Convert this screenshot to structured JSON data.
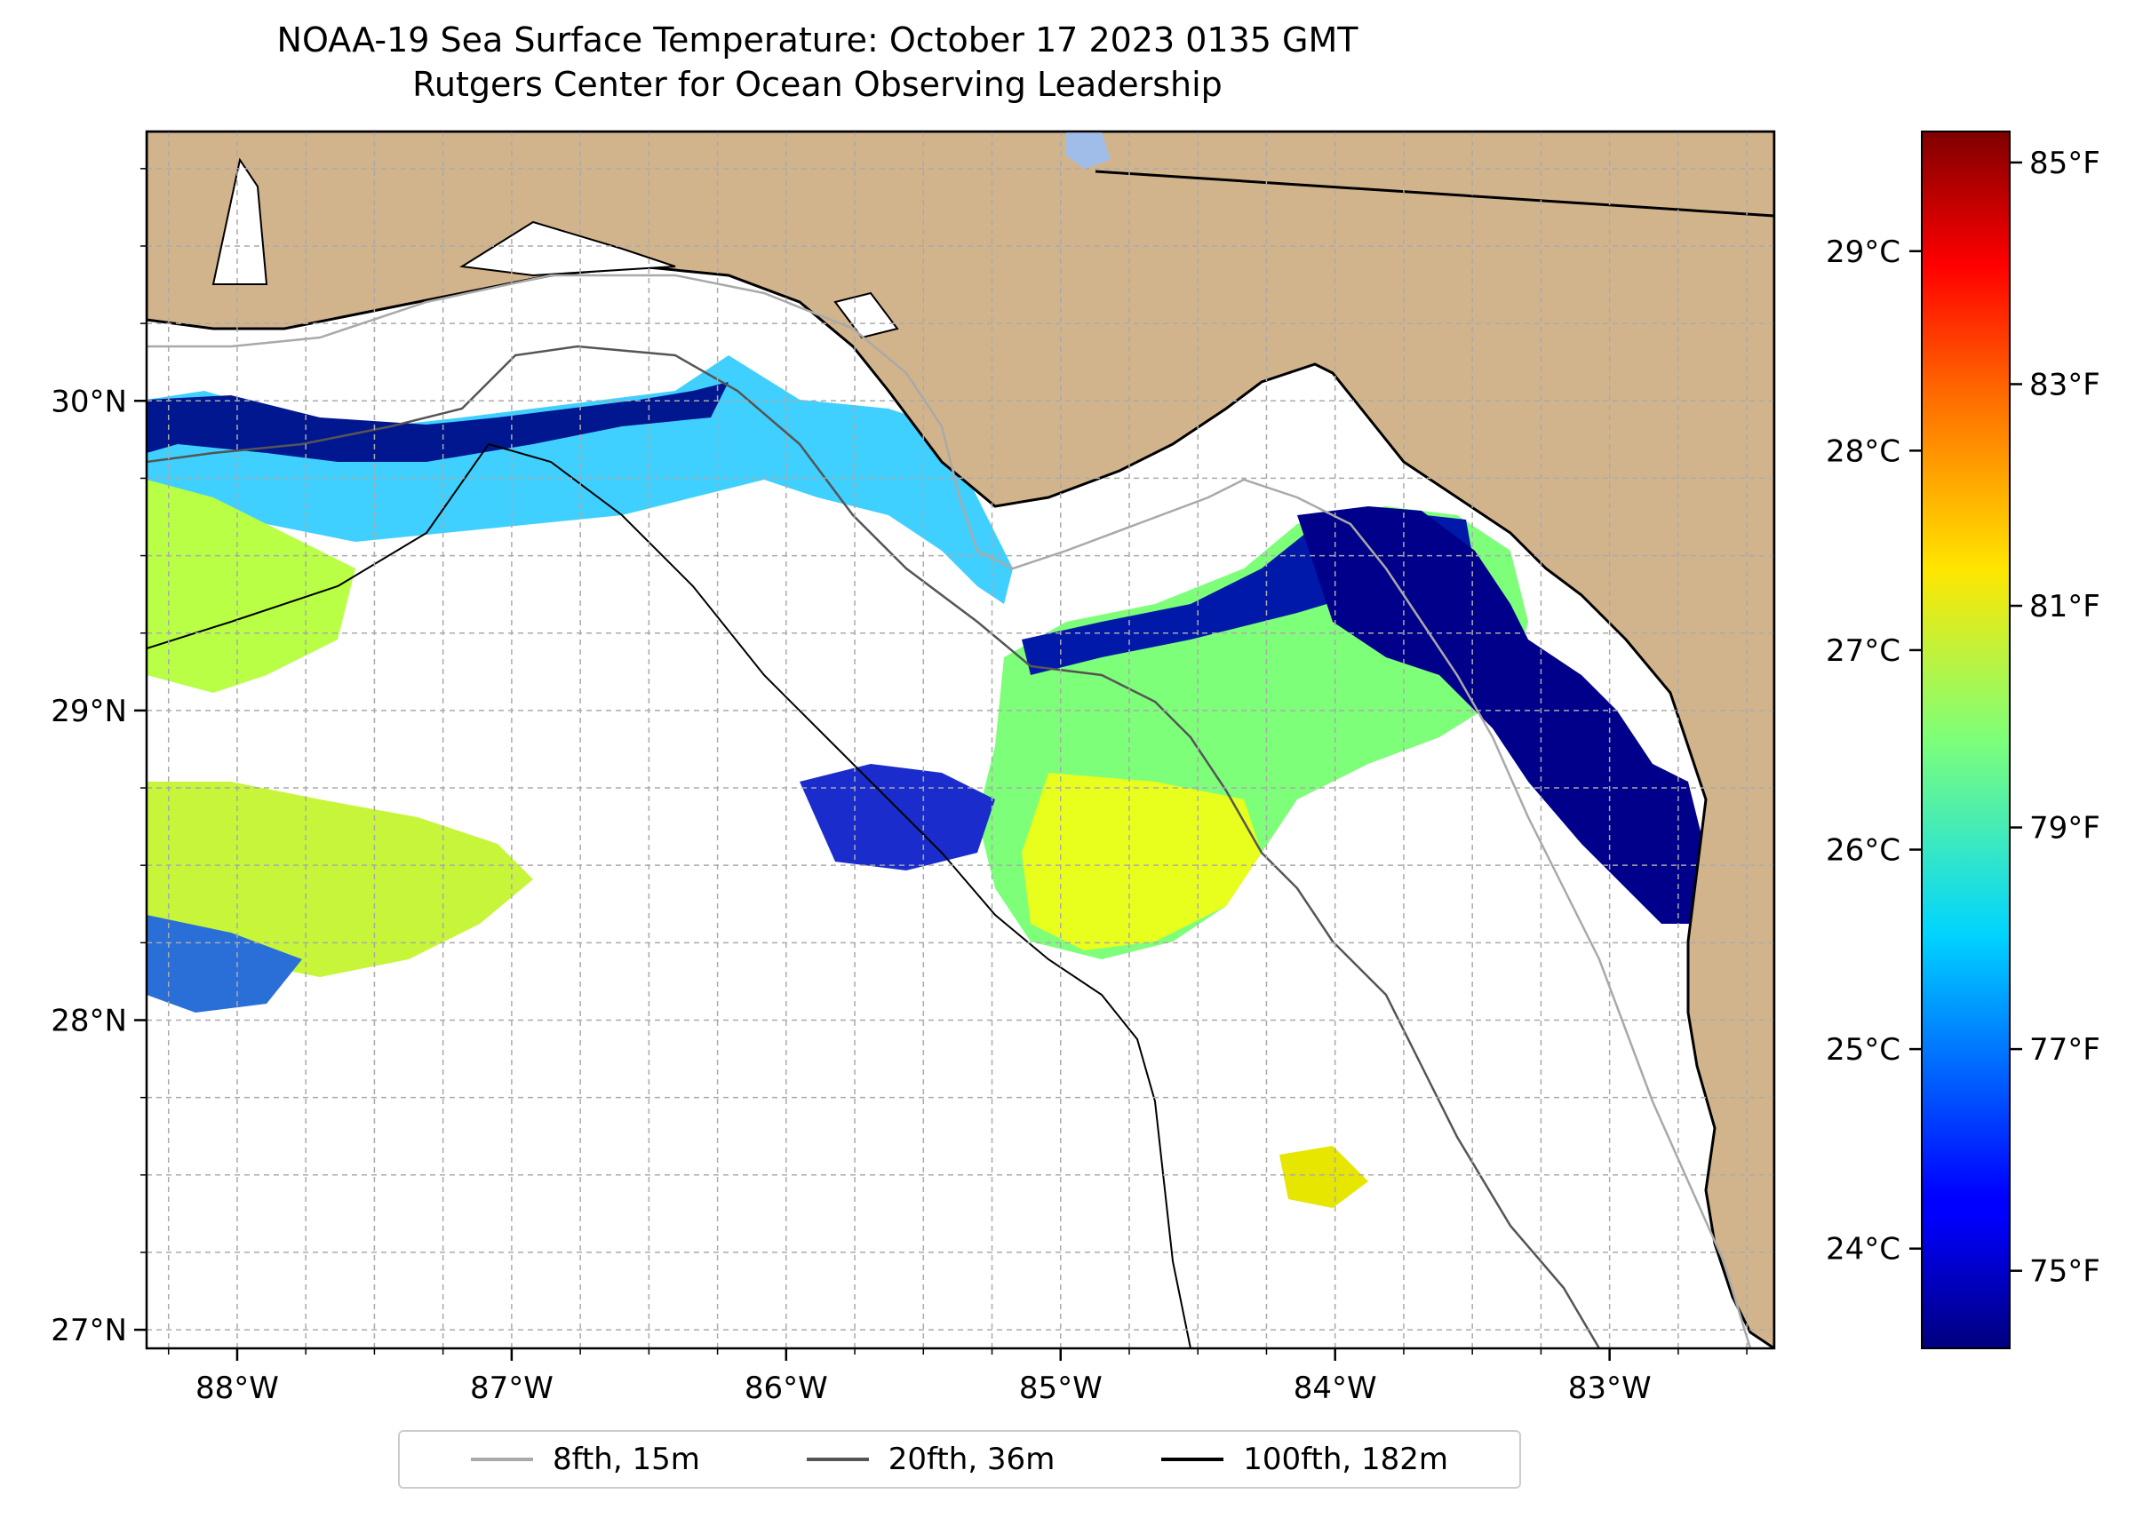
{
  "title": {
    "line1": "NOAA-19 Sea Surface Temperature: October 17 2023 0135 GMT",
    "line2": "Rutgers Center for Ocean Observing Leadership"
  },
  "map": {
    "lat_range": [
      26.94,
      30.87
    ],
    "lon_range": [
      -88.33,
      -82.4
    ],
    "lat_ticks": [
      {
        "value": 30,
        "label": "30°N"
      },
      {
        "value": 29,
        "label": "29°N"
      },
      {
        "value": 28,
        "label": "28°N"
      },
      {
        "value": 27,
        "label": "27°N"
      }
    ],
    "lon_ticks": [
      {
        "value": -88,
        "label": "88°W"
      },
      {
        "value": -87,
        "label": "87°W"
      },
      {
        "value": -86,
        "label": "86°W"
      },
      {
        "value": -85,
        "label": "85°W"
      },
      {
        "value": -84,
        "label": "84°W"
      },
      {
        "value": -83,
        "label": "83°W"
      }
    ],
    "gridlines": "dashed",
    "land_color": "#d2b48c",
    "ocean_color": "#ffffff"
  },
  "colorbar": {
    "celsius_ticks": [
      {
        "value": 29,
        "label": "29°C"
      },
      {
        "value": 28,
        "label": "28°C"
      },
      {
        "value": 27,
        "label": "27°C"
      },
      {
        "value": 26,
        "label": "26°C"
      },
      {
        "value": 25,
        "label": "25°C"
      },
      {
        "value": 24,
        "label": "24°C"
      }
    ],
    "fahrenheit_ticks": [
      {
        "value": 85,
        "label": "85°F"
      },
      {
        "value": 83,
        "label": "83°F"
      },
      {
        "value": 81,
        "label": "81°F"
      },
      {
        "value": 79,
        "label": "79°F"
      },
      {
        "value": 77,
        "label": "77°F"
      },
      {
        "value": 75,
        "label": "75°F"
      }
    ],
    "range_c": [
      23.5,
      29.6
    ],
    "colormap": "jet"
  },
  "legend": {
    "items": [
      {
        "label": "8fth, 15m",
        "color": "#a9a9a9"
      },
      {
        "label": "20fth, 36m",
        "color": "#555555"
      },
      {
        "label": "100fth, 182m",
        "color": "#000000"
      }
    ]
  }
}
